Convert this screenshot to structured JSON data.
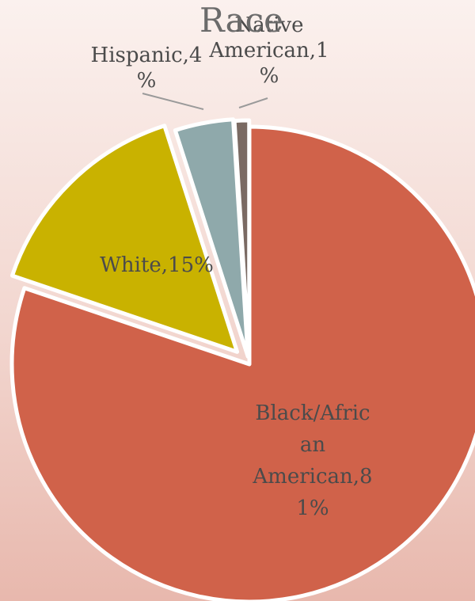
{
  "chart_data": {
    "type": "pie",
    "title": "Race",
    "categories": [
      "Black/African American",
      "White",
      "Hispanic",
      "Native American"
    ],
    "values": [
      81,
      15,
      4,
      1
    ],
    "unit": "%",
    "colors": [
      "#d0624a",
      "#c9b200",
      "#8fa9ab",
      "#7a6a63"
    ],
    "exploded": [
      false,
      true,
      true,
      true
    ],
    "legend": "none",
    "data_labels": [
      {
        "lines": [
          "Black/Afric",
          "an",
          "American,8",
          "1%"
        ]
      },
      {
        "lines": [
          "White,15%"
        ]
      },
      {
        "lines": [
          "Hispanic,4",
          "%"
        ]
      },
      {
        "lines": [
          "Native",
          "American,1",
          "%"
        ]
      }
    ]
  }
}
